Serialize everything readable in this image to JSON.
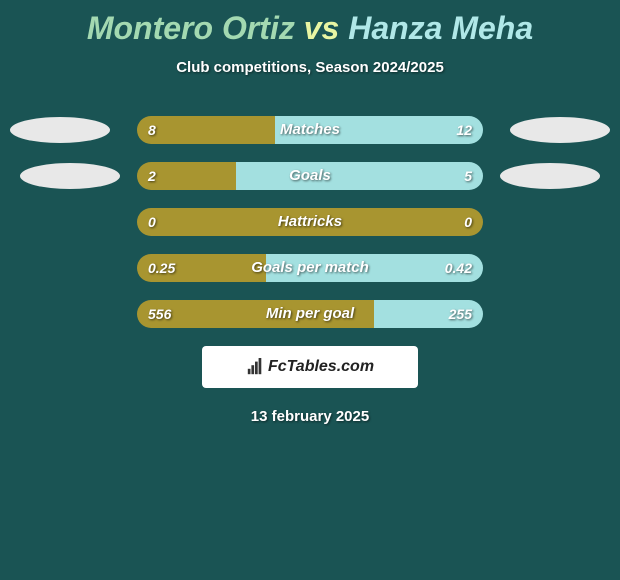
{
  "title": {
    "player1": "Montero Ortiz",
    "vs": "vs",
    "player2": "Hanza Meha",
    "player1_color": "#a3d9b1",
    "vs_color": "#e8f5a3",
    "player2_color": "#b0e8e8"
  },
  "subtitle": "Club competitions, Season 2024/2025",
  "colors": {
    "background": "#1a5454",
    "bar_left": "#a89530",
    "bar_right": "#a3e0e0",
    "badge_left": "#e8e8e8",
    "badge_right": "#e8e8e8"
  },
  "stats": [
    {
      "label": "Matches",
      "left_value": "8",
      "right_value": "12",
      "left_pct": 40,
      "right_pct": 60,
      "show_badges": true
    },
    {
      "label": "Goals",
      "left_value": "2",
      "right_value": "5",
      "left_pct": 28.6,
      "right_pct": 71.4,
      "show_badges": true,
      "badge_offset": true
    },
    {
      "label": "Hattricks",
      "left_value": "0",
      "right_value": "0",
      "left_pct": 100,
      "right_pct": 0,
      "show_badges": false
    },
    {
      "label": "Goals per match",
      "left_value": "0.25",
      "right_value": "0.42",
      "left_pct": 37.3,
      "right_pct": 62.7,
      "show_badges": false
    },
    {
      "label": "Min per goal",
      "left_value": "556",
      "right_value": "255",
      "left_pct": 68.6,
      "right_pct": 31.4,
      "show_badges": false
    }
  ],
  "footer": {
    "brand": "FcTables.com",
    "date": "13 february 2025"
  }
}
